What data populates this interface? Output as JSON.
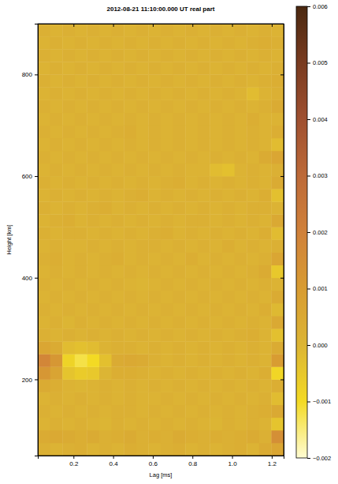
{
  "chart_data": {
    "type": "heatmap",
    "title": "2012-08-21 11:10:00.000 UT  real part",
    "x_label": "Lag [ms]",
    "y_label": "Height [km]",
    "xlim": [
      0.02,
      1.26
    ],
    "ylim": [
      50,
      900
    ],
    "xticks": [
      0.2,
      0.4,
      0.6,
      0.8,
      {
        "value": 1,
        "label": "1.0"
      },
      1.2
    ],
    "yticks": [
      200,
      400,
      600,
      800
    ],
    "x": [
      0.051,
      0.113,
      0.175,
      0.237,
      0.299,
      0.361,
      0.423,
      0.485,
      0.547,
      0.609,
      0.671,
      0.733,
      0.795,
      0.857,
      0.919,
      0.981,
      1.043,
      1.105,
      1.167,
      1.229
    ],
    "y": [
      62.5,
      87.5,
      112.5,
      137.5,
      162.5,
      187.5,
      212.5,
      237.5,
      262.5,
      287.5,
      312.5,
      337.5,
      362.5,
      387.5,
      412.5,
      437.5,
      462.5,
      487.5,
      512.5,
      537.5,
      562.5,
      587.5,
      612.5,
      637.5,
      662.5,
      687.5,
      712.5,
      737.5,
      762.5,
      787.5,
      812.5,
      837.5,
      862.5,
      887.5
    ],
    "cells": [
      [
        0.0002,
        0.0001,
        0.0002,
        0.0003,
        0.0001,
        0.0002,
        0.0001,
        0.0003,
        0.0002,
        0.0001,
        0.0002,
        0.0003,
        0.0001,
        0.0002,
        0.0001,
        0.0002,
        0.0003,
        0.0001,
        0.0004,
        0.0006
      ],
      [
        0.0004,
        0.0005,
        0.0004,
        0.0003,
        0.0004,
        0.0002,
        0.0003,
        0.0004,
        0.0002,
        0.0003,
        0.0002,
        0.0004,
        0.0003,
        0.0002,
        0.0003,
        0.0002,
        0.0003,
        0.0004,
        0.0002,
        0.0015
      ],
      [
        0.0001,
        0.0002,
        0.0001,
        0.0002,
        0.0001,
        0,
        0.0002,
        0.0001,
        0.0002,
        0.0001,
        0.0002,
        0.0001,
        0.0002,
        0.0001,
        0,
        0.0002,
        0.0001,
        0.0002,
        0.0001,
        -0.0004
      ],
      [
        0.0002,
        0.0001,
        0.0002,
        0.0001,
        0.0002,
        0.0001,
        0.0002,
        0.0002,
        0.0001,
        0.0002,
        0.0001,
        0.0002,
        0.0001,
        0.0002,
        0.0001,
        0.0002,
        0.0001,
        0.0002,
        0.0003,
        0.0005
      ],
      [
        0.0001,
        0.0002,
        0.0001,
        0.0002,
        0.0001,
        0.0002,
        0.0001,
        0.0002,
        0.0001,
        0.0001,
        0.0002,
        0.0001,
        0.0002,
        0.0001,
        0.0002,
        0.0001,
        0.0002,
        0.0001,
        0.0002,
        -0.0002
      ],
      [
        0.0004,
        0.0003,
        0.0001,
        0,
        0.0001,
        0.0002,
        0.0001,
        0.0002,
        0.0001,
        0.0002,
        0.0001,
        0.0002,
        0.0001,
        0.0002,
        0.0001,
        0.0002,
        0.0001,
        0.0002,
        0.0001,
        0.0003
      ],
      [
        0.0012,
        0.0007,
        -0.0004,
        -0.0006,
        -0.0005,
        0,
        0.0003,
        0.0003,
        0.0002,
        0.0001,
        0.0002,
        0.0001,
        0.0002,
        0.0001,
        0.0002,
        0.0001,
        0.0002,
        0.0001,
        0.0003,
        -0.0009
      ],
      [
        0.0018,
        0.0012,
        -0.0008,
        -0.0012,
        -0.001,
        -0.0003,
        0.0004,
        0.0005,
        0.0004,
        0.0002,
        0.0001,
        0.0002,
        0.0001,
        0.0002,
        0.0001,
        0.0002,
        0.0001,
        0.0002,
        0.0001,
        0.001
      ],
      [
        0.0006,
        0.0004,
        -0.0002,
        -0.0003,
        -0.0002,
        0.0001,
        0.0002,
        0.0002,
        0.0001,
        0.0002,
        0.0001,
        0.0002,
        0.0001,
        0.0002,
        0.0001,
        0.0002,
        0.0001,
        0.0002,
        0.0001,
        0.0004
      ],
      [
        0.0002,
        0.0001,
        0.0002,
        0.0001,
        0.0002,
        0.0001,
        0.0002,
        0.0001,
        0.0002,
        0.0001,
        0.0002,
        0.0001,
        0.0002,
        0.0001,
        0.0002,
        0.0001,
        0.0002,
        0.0003,
        0.0001,
        -0.0003
      ],
      [
        0.0001,
        0.0002,
        0,
        0.0002,
        0.0001,
        0.0002,
        0.0001,
        0.0002,
        0.0001,
        0.0002,
        0.0001,
        0.0002,
        0.0001,
        0.0002,
        0.0001,
        0.0002,
        0.0001,
        0.0002,
        0.0001,
        0.0005
      ],
      [
        0.0002,
        0.0001,
        0.0002,
        0.0001,
        0.0002,
        0.0001,
        0.0002,
        0.0001,
        0.0002,
        0.0001,
        0.0002,
        0.0001,
        0.0002,
        0.0001,
        0.0002,
        0.0001,
        0.0002,
        0.0001,
        0.0003,
        -0.0001
      ],
      [
        0.0001,
        0.0002,
        0.0001,
        0.0002,
        0.0001,
        0.0002,
        0.0001,
        0.0002,
        0.0001,
        0.0002,
        0.0001,
        0.0002,
        0.0001,
        0.0002,
        0.0001,
        0.0002,
        0.0001,
        0.0002,
        0.0001,
        0.0004
      ],
      [
        0.0002,
        0.0001,
        0.0002,
        0.0001,
        0.0002,
        0.0001,
        0.0002,
        0.0001,
        0,
        0.0001,
        0.0002,
        0.0001,
        0.0002,
        0.0001,
        0.0002,
        0.0001,
        0.0002,
        0.0001,
        0.0002,
        0.0001
      ],
      [
        0.0001,
        0.0002,
        0.0001,
        0.0002,
        0.0001,
        0.0002,
        0.0001,
        0.0002,
        0.0001,
        0.0002,
        0.0001,
        0.0002,
        0.0001,
        0.0002,
        0.0001,
        0.0002,
        0.0001,
        0.0002,
        0.0004,
        -0.0005
      ],
      [
        0.0002,
        0.0003,
        0.0001,
        0.0002,
        0.0001,
        0.0002,
        0.0003,
        0.0001,
        0.0002,
        0.0001,
        0.0002,
        0.0001,
        0.0003,
        0.0001,
        0.0002,
        0.0001,
        0.0002,
        0.0001,
        0.0002,
        0.0006
      ],
      [
        0.0001,
        0.0002,
        0.0001,
        0.0001,
        0.0002,
        0.0001,
        0.0002,
        0.0001,
        0.0002,
        0.0002,
        0.0001,
        0.0002,
        0.0001,
        0.0002,
        0.0001,
        0.0003,
        0.0001,
        0.0002,
        0.0001,
        0.0002
      ],
      [
        0.0002,
        0.0001,
        0.0002,
        0.0002,
        0.0001,
        0.0002,
        0.0001,
        0.0002,
        0.0001,
        0.0002,
        0.0003,
        0.0001,
        0.0002,
        0.0001,
        0.0002,
        0.0001,
        0.0002,
        0.0001,
        0.0003,
        -0.0002
      ],
      [
        0.0001,
        0.0002,
        0.0003,
        0.0001,
        0.0002,
        0.0001,
        0.0002,
        0.0001,
        0.0002,
        0.0001,
        0.0002,
        0.0001,
        0.0002,
        0.0002,
        0.0001,
        0.0002,
        0.0001,
        0.0002,
        0.0001,
        0.0005
      ],
      [
        0.0002,
        0.0001,
        0.0002,
        0.0001,
        0.0002,
        0.0003,
        0.0001,
        0.0002,
        0.0001,
        0.0002,
        0.0001,
        0.0002,
        0.0001,
        0.0002,
        0.0001,
        0.0002,
        0.0001,
        0.0002,
        0.0002,
        0.0001
      ],
      [
        0.0001,
        0.0002,
        0.0001,
        0.0002,
        0.0001,
        0.0002,
        0.0001,
        0.0002,
        0.0003,
        0.0001,
        0.0002,
        0.0001,
        0.0002,
        0.0001,
        0.0002,
        0.0001,
        0.0002,
        0.0001,
        0.0003,
        -0.0003
      ],
      [
        0.0002,
        0.0001,
        0.0002,
        0.0001,
        0.0002,
        0.0001,
        0.0002,
        0.0001,
        0.0002,
        0.0001,
        0.0002,
        0.0003,
        0.0001,
        0.0002,
        0.0001,
        0.0002,
        0.0001,
        0.0002,
        0.0001,
        0.0004
      ],
      [
        0.0001,
        0.0002,
        0.0001,
        0.0002,
        0.0001,
        0.0002,
        0.0001,
        0.0002,
        0.0001,
        0.0002,
        0.0001,
        0.0002,
        0.0001,
        0.0001,
        -0.0002,
        -0.0003,
        0.0001,
        0.0002,
        0.0001,
        0.0002
      ],
      [
        0.0002,
        0.0001,
        0.0002,
        0.0001,
        0.0002,
        0.0001,
        0.0002,
        0.0001,
        0.0002,
        0.0001,
        0.0002,
        0.0001,
        0.0002,
        0.0001,
        0.0002,
        0.0001,
        0.0002,
        0.0001,
        0.0004,
        0.0006
      ],
      [
        0.0001,
        0.0002,
        0.0001,
        0.0002,
        0.0001,
        0.0002,
        0.0001,
        0.0002,
        0.0001,
        0.0002,
        0.0001,
        0.0002,
        0.0001,
        0.0002,
        0.0001,
        0.0002,
        0.0001,
        0.0002,
        0.0001,
        -0.0002
      ],
      [
        0.0002,
        0.0001,
        0.0002,
        0.0001,
        0.0002,
        0.0001,
        0.0002,
        0.0003,
        0.0001,
        0.0002,
        0.0001,
        0.0002,
        0.0001,
        0.0002,
        0.0001,
        0.0002,
        0.0001,
        0.0002,
        0.0001,
        0.0003
      ],
      [
        0.0001,
        0.0002,
        0.0001,
        0.0002,
        0.0001,
        0.0002,
        0.0001,
        0.0002,
        0.0001,
        0.0002,
        0.0001,
        0.0002,
        0.0001,
        0.0002,
        0.0001,
        0.0002,
        0.0001,
        0.0003,
        0.0001,
        0.0001
      ],
      [
        0.0002,
        0.0001,
        0.0002,
        0.0001,
        0.0002,
        0.0001,
        0.0002,
        0.0001,
        0.0002,
        0.0001,
        0.0002,
        0.0001,
        0.0002,
        0.0001,
        0.0002,
        0.0001,
        0.0002,
        0.0001,
        0.0002,
        0.0004
      ],
      [
        0.0001,
        0.0002,
        0.0001,
        0.0002,
        0.0001,
        0.0002,
        0.0001,
        0.0002,
        0.0001,
        0.0002,
        0.0001,
        0.0002,
        0.0001,
        0.0002,
        0.0001,
        0.0002,
        0.0001,
        -0.0002,
        0.0001,
        0.0002
      ],
      [
        0.0002,
        0.0001,
        0.0002,
        0.0001,
        0.0002,
        0.0001,
        0.0002,
        0.0001,
        0.0002,
        0.0001,
        0.0002,
        0.0001,
        0.0002,
        0.0001,
        0.0002,
        0.0001,
        0.0002,
        0.0001,
        0.0002,
        0.0003
      ],
      [
        0.0001,
        0.0002,
        0.0001,
        0.0002,
        0.0001,
        0.0002,
        0.0001,
        0.0002,
        0.0001,
        0.0002,
        0.0001,
        0.0002,
        0.0001,
        0.0002,
        0.0001,
        0.0002,
        0.0001,
        0.0002,
        0.0001,
        0.0002
      ],
      [
        0.0002,
        0.0001,
        0.0002,
        0.0001,
        0.0002,
        0.0001,
        0.0002,
        0.0001,
        0.0002,
        0.0001,
        0.0002,
        0.0001,
        0.0002,
        0.0001,
        0.0002,
        0.0001,
        0.0002,
        0.0001,
        0.0002,
        0.0001
      ],
      [
        0.0001,
        0.0002,
        0.0001,
        0.0002,
        0.0001,
        0.0002,
        0.0001,
        0.0002,
        0.0001,
        0.0002,
        0.0001,
        0.0002,
        0.0001,
        0.0002,
        0.0001,
        0.0002,
        0.0001,
        0.0002,
        0.0003,
        0.0002
      ],
      [
        0.0002,
        0.0001,
        0.0002,
        0.0001,
        0.0002,
        0.0001,
        0.0002,
        0.0001,
        0.0002,
        0.0001,
        0.0002,
        0.0001,
        0.0002,
        0.0001,
        0.0002,
        0.0001,
        0.0002,
        0.0001,
        0.0002,
        0.0001
      ]
    ],
    "colorbar": {
      "range": [
        -0.002,
        0.006
      ],
      "ticks": [
        {
          "value": -0.002,
          "label": "−0.002"
        },
        {
          "value": -0.001,
          "label": "−0.001"
        },
        {
          "value": 0,
          "label": "0.000"
        },
        0.001,
        0.002,
        0.003,
        0.004,
        0.005,
        0.006
      ]
    }
  }
}
